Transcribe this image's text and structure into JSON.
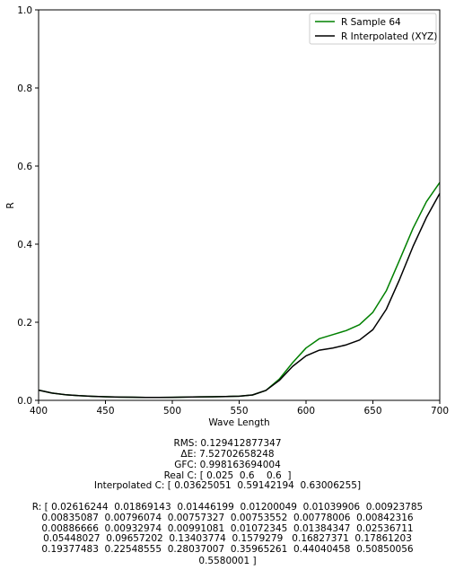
{
  "chart_data": {
    "type": "line",
    "xlabel": "Wave Length",
    "ylabel": "R",
    "xlim": [
      400,
      700
    ],
    "ylim": [
      0,
      1.0
    ],
    "x_ticks": [
      "400",
      "450",
      "500",
      "550",
      "600",
      "650",
      "700"
    ],
    "y_ticks": [
      "0.0",
      "0.2",
      "0.4",
      "0.6",
      "0.8",
      "1.0"
    ],
    "grid": false,
    "legend_position": "top-right",
    "x": [
      400,
      410,
      420,
      430,
      440,
      450,
      460,
      470,
      480,
      490,
      500,
      510,
      520,
      530,
      540,
      550,
      560,
      570,
      580,
      590,
      600,
      610,
      620,
      630,
      640,
      650,
      660,
      670,
      680,
      690,
      700
    ],
    "series": [
      {
        "name": "R Sample 64",
        "color": "#008000",
        "values": [
          0.02616244,
          0.01869143,
          0.01446199,
          0.01200049,
          0.01039906,
          0.00923785,
          0.00835087,
          0.00796074,
          0.00757327,
          0.00753552,
          0.00778006,
          0.00842316,
          0.00886666,
          0.00932974,
          0.00991081,
          0.01072345,
          0.01384347,
          0.02536711,
          0.05448027,
          0.09657202,
          0.13403774,
          0.1579279,
          0.16827371,
          0.17861203,
          0.19377483,
          0.22548555,
          0.28037007,
          0.35965261,
          0.44040458,
          0.50850056,
          0.5580001
        ]
      },
      {
        "name": "R Interpolated (XYZ)",
        "color": "#000000",
        "values": [
          0.0262,
          0.0187,
          0.0145,
          0.012,
          0.0104,
          0.0092,
          0.0084,
          0.008,
          0.0076,
          0.0075,
          0.0078,
          0.0084,
          0.0089,
          0.0093,
          0.0099,
          0.0107,
          0.0138,
          0.0254,
          0.051,
          0.087,
          0.114,
          0.1285,
          0.134,
          0.142,
          0.1545,
          0.181,
          0.233,
          0.31,
          0.394,
          0.468,
          0.53
        ]
      }
    ]
  },
  "metrics": {
    "rms": "RMS: 0.129412877347",
    "delta_e": "ΔE: 7.52702658248",
    "gfc": "GFC: 0.998163694004",
    "real_c": "Real C: [ 0.025  0.6    0.6  ]",
    "interp_c": "Interpolated C: [ 0.03625051  0.59142194  0.63006255]"
  },
  "r_values_text": [
    "R: [ 0.02616244  0.01869143  0.01446199  0.01200049  0.01039906  0.00923785",
    "0.00835087  0.00796074  0.00757327  0.00753552  0.00778006  0.00842316",
    "0.00886666  0.00932974  0.00991081  0.01072345  0.01384347  0.02536711",
    "0.05448027  0.09657202  0.13403774  0.1579279   0.16827371  0.17861203",
    "0.19377483  0.22548555  0.28037007  0.35965261  0.44040458  0.50850056",
    "0.5580001 ]"
  ]
}
